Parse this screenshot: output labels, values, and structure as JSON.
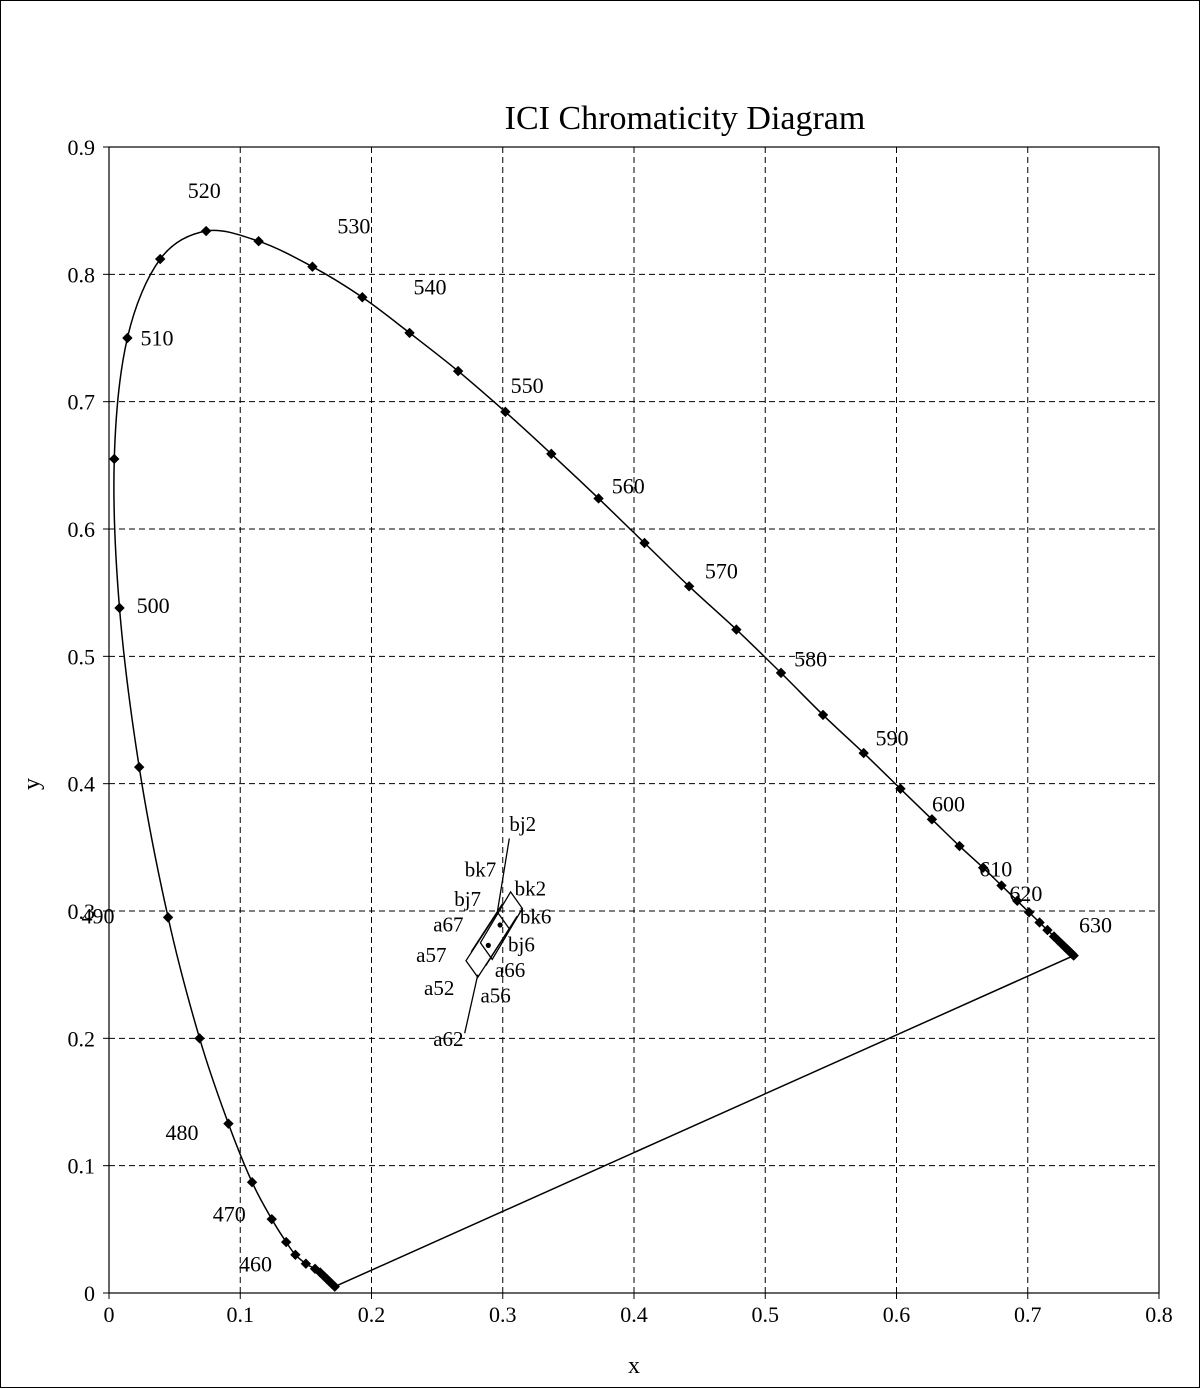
{
  "chart_data": {
    "type": "scatter",
    "title": "ICI Chromaticity Diagram",
    "xlabel": "x",
    "ylabel": "y",
    "xlim": [
      0,
      0.8
    ],
    "ylim": [
      0,
      0.9
    ],
    "xticks": [
      "0",
      "0.1",
      "0.2",
      "0.3",
      "0.4",
      "0.5",
      "0.6",
      "0.7",
      "0.8"
    ],
    "yticks": [
      "0",
      "0.1",
      "0.2",
      "0.3",
      "0.4",
      "0.5",
      "0.6",
      "0.7",
      "0.8",
      "0.9"
    ],
    "grid": true,
    "spectral_locus": [
      {
        "x": 0.172,
        "y": 0.005
      },
      {
        "x": 0.17,
        "y": 0.007
      },
      {
        "x": 0.168,
        "y": 0.009
      },
      {
        "x": 0.166,
        "y": 0.011
      },
      {
        "x": 0.164,
        "y": 0.013
      },
      {
        "x": 0.161,
        "y": 0.016
      },
      {
        "x": 0.157,
        "y": 0.019
      },
      {
        "x": 0.15,
        "y": 0.023
      },
      {
        "x": 0.142,
        "y": 0.03
      },
      {
        "x": 0.135,
        "y": 0.04
      },
      {
        "x": 0.124,
        "y": 0.058
      },
      {
        "x": 0.109,
        "y": 0.087
      },
      {
        "x": 0.091,
        "y": 0.133
      },
      {
        "x": 0.069,
        "y": 0.2
      },
      {
        "x": 0.045,
        "y": 0.295
      },
      {
        "x": 0.023,
        "y": 0.413
      },
      {
        "x": 0.008,
        "y": 0.538
      },
      {
        "x": 0.004,
        "y": 0.655
      },
      {
        "x": 0.014,
        "y": 0.75
      },
      {
        "x": 0.039,
        "y": 0.812
      },
      {
        "x": 0.074,
        "y": 0.834
      },
      {
        "x": 0.114,
        "y": 0.826
      },
      {
        "x": 0.155,
        "y": 0.806
      },
      {
        "x": 0.193,
        "y": 0.782
      },
      {
        "x": 0.229,
        "y": 0.754
      },
      {
        "x": 0.266,
        "y": 0.724
      },
      {
        "x": 0.302,
        "y": 0.692
      },
      {
        "x": 0.337,
        "y": 0.659
      },
      {
        "x": 0.373,
        "y": 0.624
      },
      {
        "x": 0.408,
        "y": 0.589
      },
      {
        "x": 0.442,
        "y": 0.555
      },
      {
        "x": 0.478,
        "y": 0.521
      },
      {
        "x": 0.512,
        "y": 0.487
      },
      {
        "x": 0.544,
        "y": 0.454
      },
      {
        "x": 0.575,
        "y": 0.424
      },
      {
        "x": 0.603,
        "y": 0.396
      },
      {
        "x": 0.627,
        "y": 0.372
      },
      {
        "x": 0.648,
        "y": 0.351
      },
      {
        "x": 0.666,
        "y": 0.334
      },
      {
        "x": 0.68,
        "y": 0.32
      },
      {
        "x": 0.692,
        "y": 0.308
      },
      {
        "x": 0.701,
        "y": 0.299
      },
      {
        "x": 0.709,
        "y": 0.291
      },
      {
        "x": 0.715,
        "y": 0.285
      },
      {
        "x": 0.72,
        "y": 0.28
      },
      {
        "x": 0.723,
        "y": 0.277
      },
      {
        "x": 0.726,
        "y": 0.274
      },
      {
        "x": 0.728,
        "y": 0.272
      },
      {
        "x": 0.73,
        "y": 0.27
      },
      {
        "x": 0.731,
        "y": 0.269
      },
      {
        "x": 0.732,
        "y": 0.268
      },
      {
        "x": 0.733,
        "y": 0.267
      },
      {
        "x": 0.734,
        "y": 0.266
      },
      {
        "x": 0.735,
        "y": 0.265
      }
    ],
    "wavelength_labels": [
      {
        "text": "460",
        "x": 0.099,
        "y": 0.017
      },
      {
        "text": "470",
        "x": 0.079,
        "y": 0.056
      },
      {
        "text": "480",
        "x": 0.043,
        "y": 0.12
      },
      {
        "text": "490",
        "x": -0.021,
        "y": 0.29
      },
      {
        "text": "500",
        "x": 0.021,
        "y": 0.534
      },
      {
        "text": "510",
        "x": 0.024,
        "y": 0.744
      },
      {
        "text": "520",
        "x": 0.06,
        "y": 0.86
      },
      {
        "text": "530",
        "x": 0.174,
        "y": 0.832
      },
      {
        "text": "540",
        "x": 0.232,
        "y": 0.784
      },
      {
        "text": "550",
        "x": 0.306,
        "y": 0.707
      },
      {
        "text": "560",
        "x": 0.383,
        "y": 0.628
      },
      {
        "text": "570",
        "x": 0.454,
        "y": 0.561
      },
      {
        "text": "580",
        "x": 0.522,
        "y": 0.492
      },
      {
        "text": "590",
        "x": 0.584,
        "y": 0.43
      },
      {
        "text": "600",
        "x": 0.627,
        "y": 0.378
      },
      {
        "text": "610",
        "x": 0.663,
        "y": 0.327
      },
      {
        "text": "620",
        "x": 0.686,
        "y": 0.308
      },
      {
        "text": "630",
        "x": 0.739,
        "y": 0.283
      }
    ],
    "marker_labels": [
      {
        "text": "bj2",
        "x": 0.305,
        "y": 0.363
      },
      {
        "text": "bk7",
        "x": 0.271,
        "y": 0.327
      },
      {
        "text": "bj7",
        "x": 0.263,
        "y": 0.304
      },
      {
        "text": "a67",
        "x": 0.247,
        "y": 0.284
      },
      {
        "text": "a57",
        "x": 0.234,
        "y": 0.26
      },
      {
        "text": "a52",
        "x": 0.24,
        "y": 0.234
      },
      {
        "text": "a62",
        "x": 0.247,
        "y": 0.194
      },
      {
        "text": "a56",
        "x": 0.283,
        "y": 0.228
      },
      {
        "text": "a66",
        "x": 0.294,
        "y": 0.248
      },
      {
        "text": "bj6",
        "x": 0.304,
        "y": 0.268
      },
      {
        "text": "bk6",
        "x": 0.313,
        "y": 0.29
      },
      {
        "text": "bk2",
        "x": 0.309,
        "y": 0.312
      }
    ],
    "center_points": [
      {
        "x": 0.289,
        "y": 0.273
      },
      {
        "x": 0.298,
        "y": 0.289
      }
    ]
  }
}
